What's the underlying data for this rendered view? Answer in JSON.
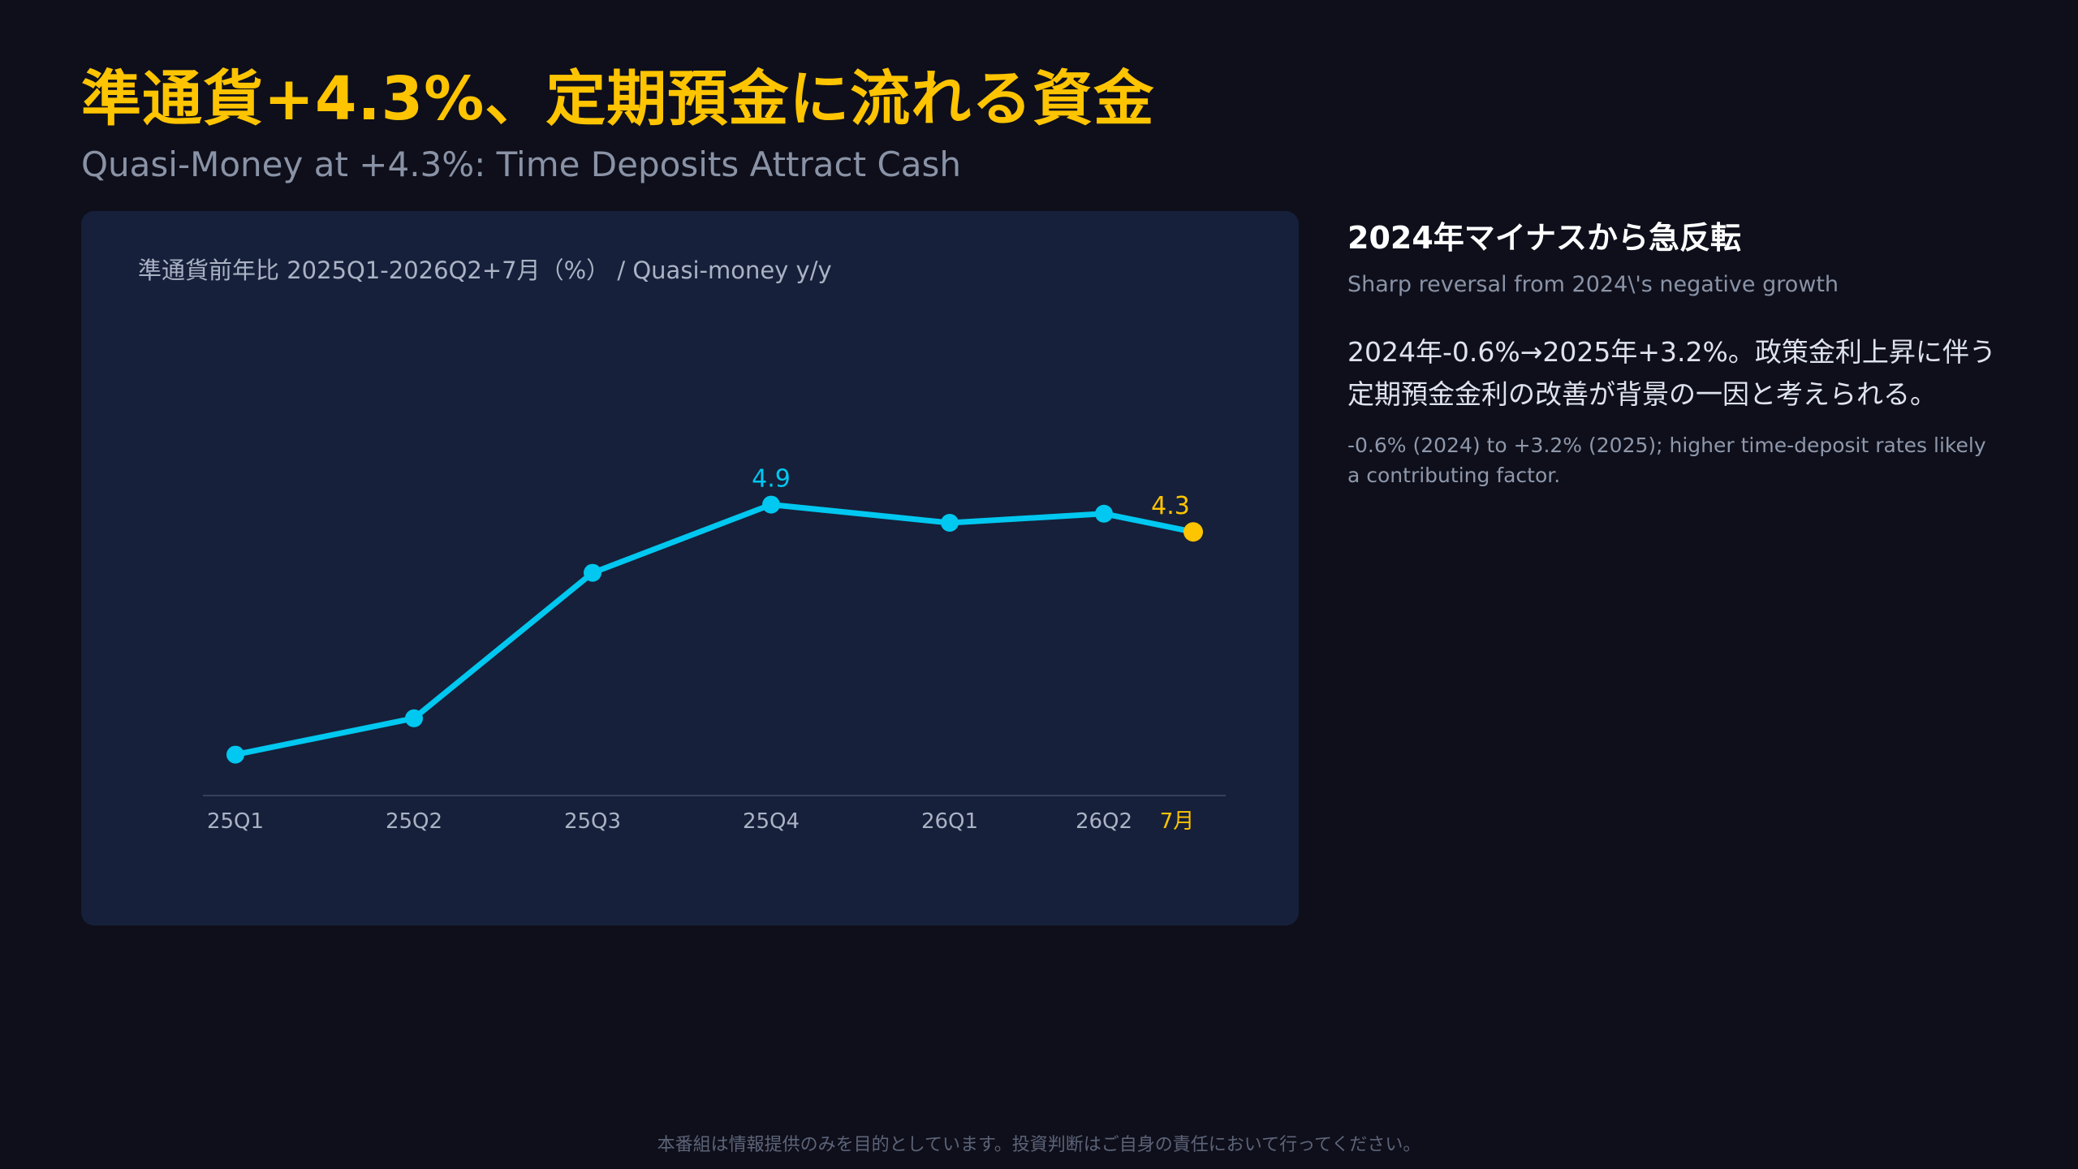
{
  "header": {
    "title": "準通貨+4.3%、定期預金に流れる資金",
    "subtitle": "Quasi-Money at +4.3%: Time Deposits Attract Cash"
  },
  "chart_card": {
    "caption": "準通貨前年比 2025Q1-2026Q2+7月（%） / Quasi-money y/y"
  },
  "chart_data": {
    "type": "line",
    "categories": [
      "25Q1",
      "25Q2",
      "25Q3",
      "25Q4",
      "26Q1",
      "26Q2",
      "7月"
    ],
    "values": [
      -0.6,
      0.2,
      3.4,
      4.9,
      4.5,
      4.7,
      4.3
    ],
    "data_labels": [
      {
        "index": 3,
        "text": "4.9"
      },
      {
        "index": 6,
        "text": "4.3"
      }
    ],
    "highlight_index": 6,
    "title": "",
    "xlabel": "",
    "ylabel": "",
    "ylim": [
      -1.5,
      6.0
    ],
    "grid": false,
    "colors": {
      "line": "#00c8f0",
      "highlight": "#ffc400",
      "tick": "#aab2c4",
      "axis": "#34405c"
    }
  },
  "side": {
    "heading": "2024年マイナスから急反転",
    "subheading": "Sharp reversal from 2024\\'s negative growth",
    "body": "2024年-0.6%→2025年+3.2%。政策金利上昇に伴う定期預金金利の改善が背景の一因と考えられる。",
    "note": "-0.6% (2024) to +3.2% (2025); higher time-deposit rates likely a contributing factor."
  },
  "footer": {
    "disclaimer": "本番組は情報提供のみを目的としています。投資判断はご自身の責任において行ってください。"
  },
  "theme": {
    "background": "#0e0f1b",
    "card": "#16203a",
    "accent": "#ffc400"
  }
}
